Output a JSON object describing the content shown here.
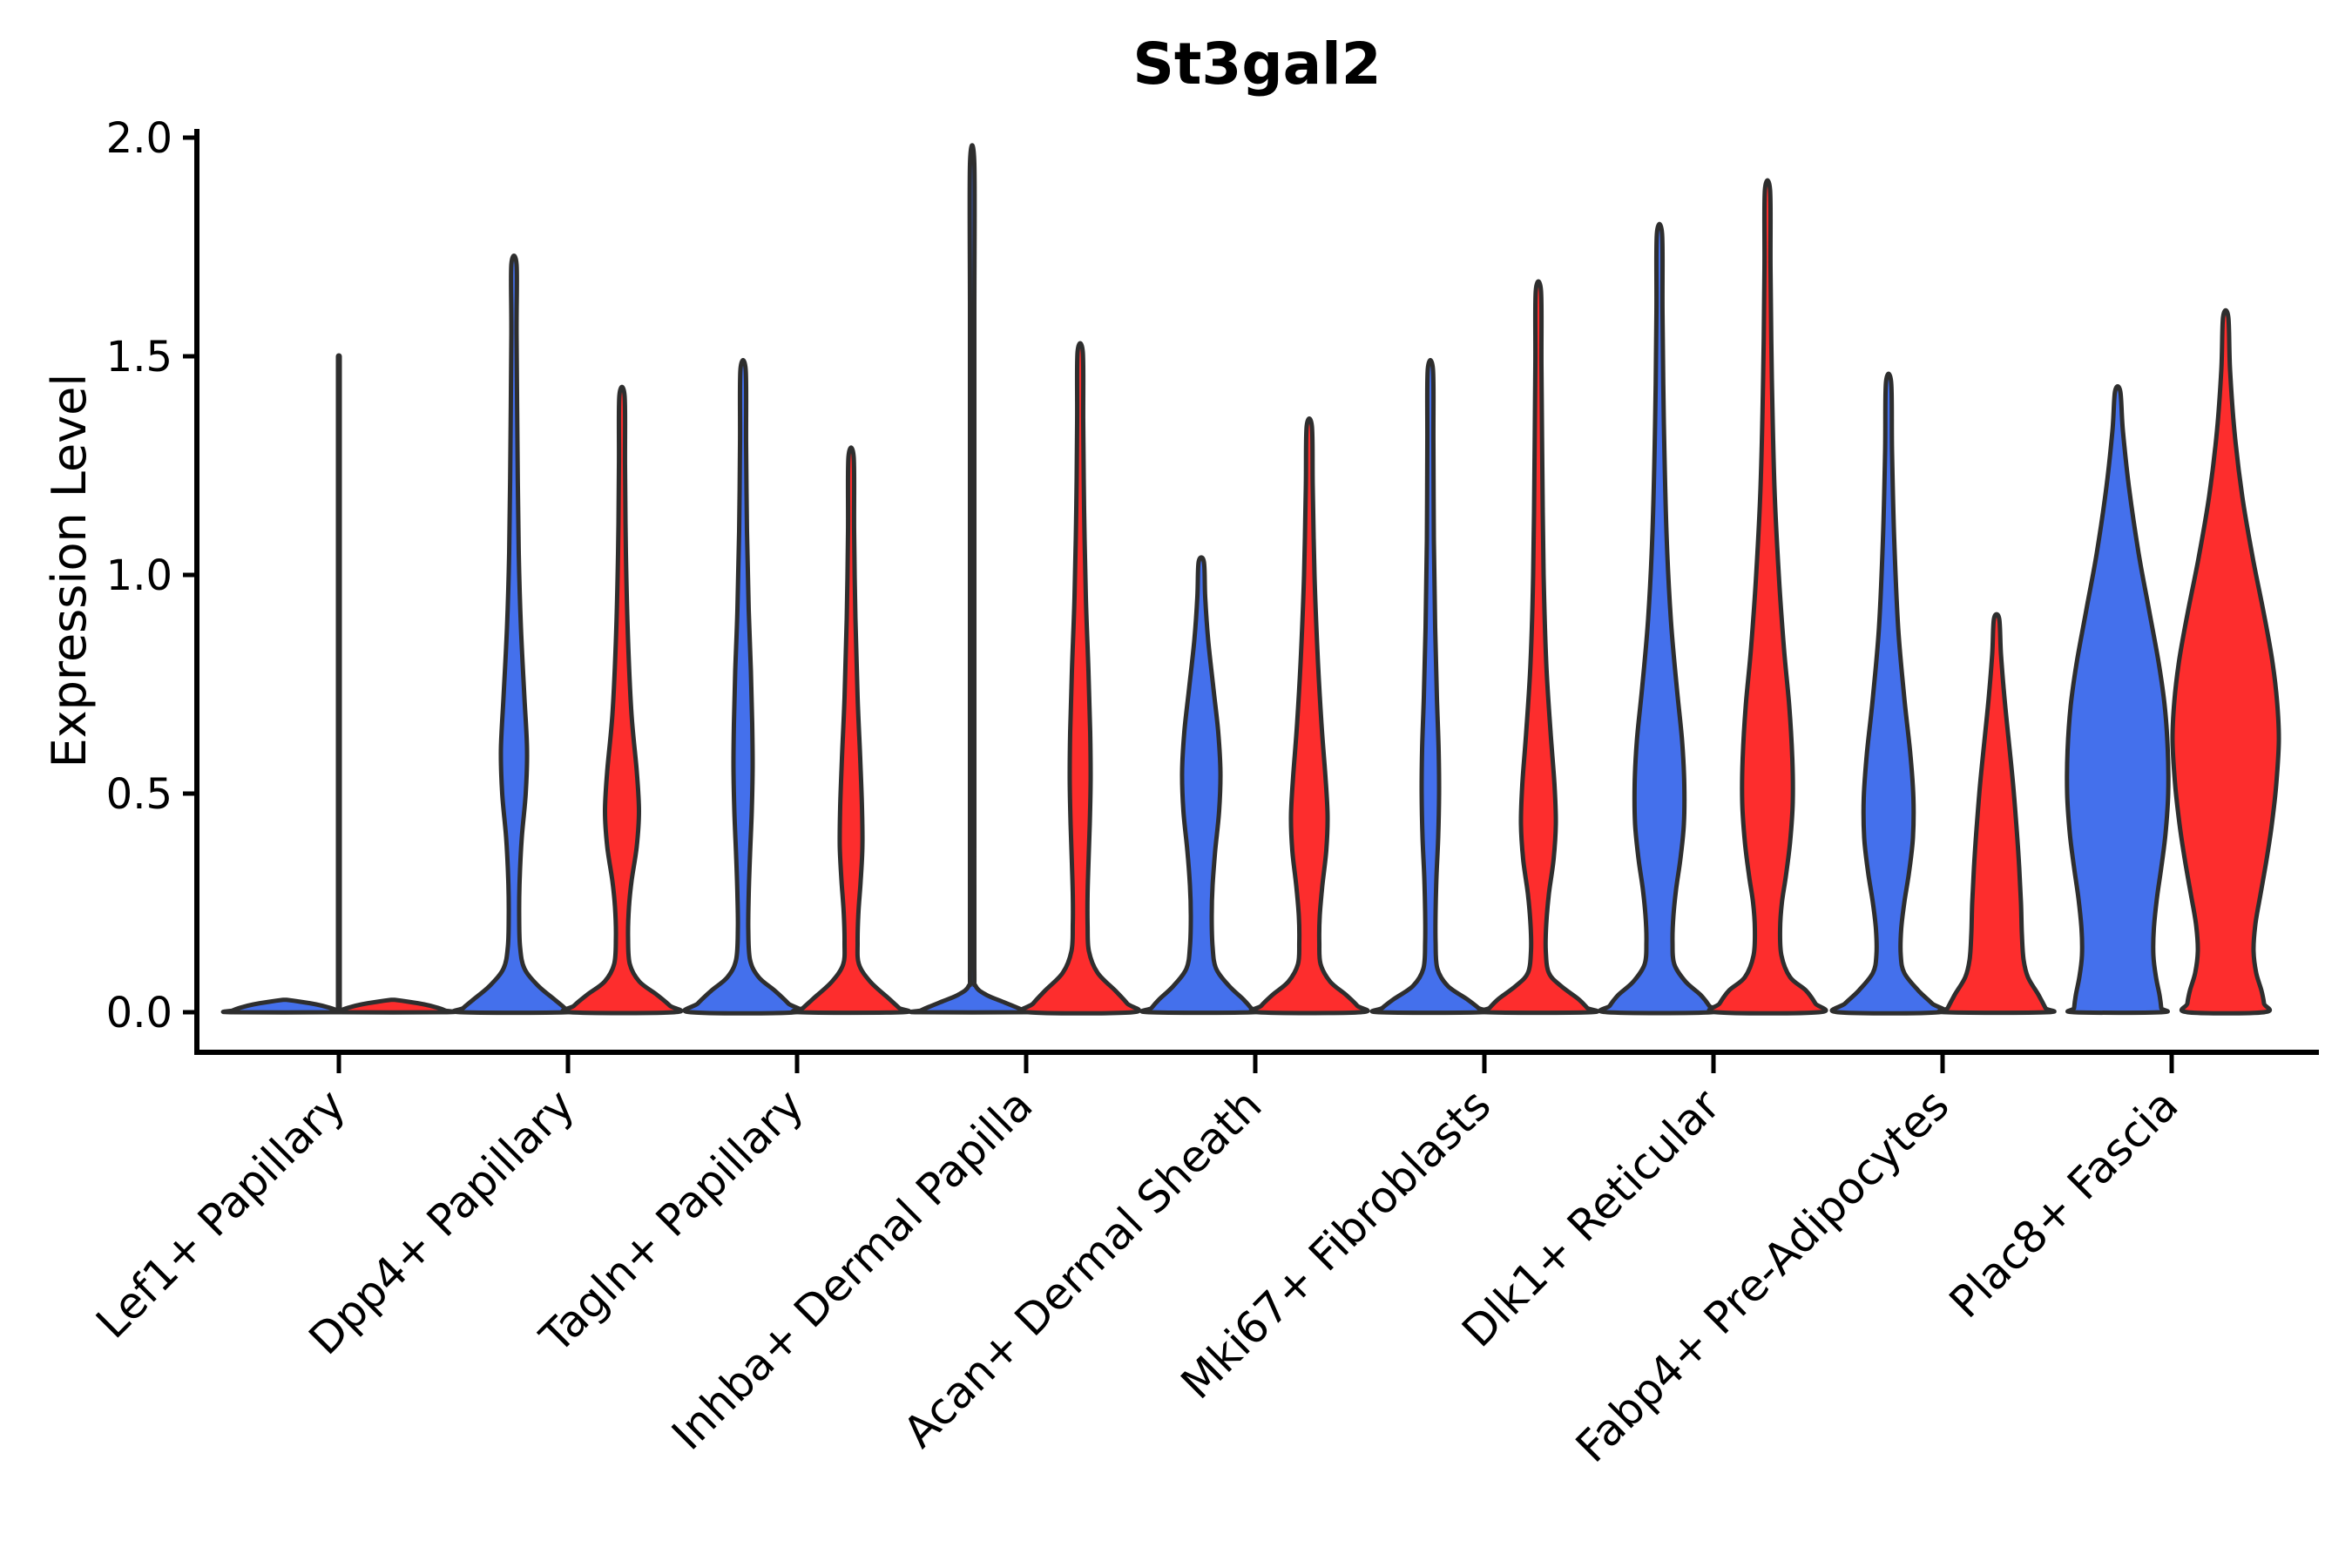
{
  "title": "St3gal2",
  "y_axis": {
    "label": "Expression Level",
    "ticks": [
      "0.0",
      "0.5",
      "1.0",
      "1.5",
      "2.0"
    ]
  },
  "colors": {
    "blue": "#4470ec",
    "red": "#fd2d2d",
    "outline": "#2e2e2e",
    "axis": "#000000",
    "text": "#000000"
  },
  "chart_data": {
    "type": "violin",
    "title": "St3gal2",
    "xlabel": "",
    "ylabel": "Expression Level",
    "ylim": [
      0,
      2
    ],
    "yticks": [
      0.0,
      0.5,
      1.0,
      1.5,
      2.0
    ],
    "grid": false,
    "legend_position": "none",
    "categories": [
      "Lef1+ Papillary",
      "Dpp4+ Papillary",
      "Tagln+ Papillary",
      "Inhba+ Dermal Papilla",
      "Acan+ Dermal Sheath",
      "Mki67+ Fibroblasts",
      "Dlk1+ Reticular",
      "Fabp4+ Pre-Adipocytes",
      "Plac8+ Fascia"
    ],
    "series": [
      {
        "name": "blue",
        "color": "#4470ec",
        "max_expression": [
          1.5,
          1.71,
          1.47,
          1.94,
          1.03,
          1.47,
          1.78,
          1.44,
          1.42
        ]
      },
      {
        "name": "red",
        "color": "#fd2d2d",
        "max_expression": [
          0.03,
          1.41,
          1.27,
          1.51,
          1.34,
          1.65,
          1.88,
          0.9,
          1.59
        ]
      }
    ],
    "zero_stick": {
      "category_index": 0,
      "value": 1.5,
      "position": "group-center"
    },
    "violins": [
      {
        "category_index": 0,
        "color": "blue",
        "max": 0.03,
        "profile": [
          [
            0.028,
            3
          ],
          [
            0.024,
            18
          ],
          [
            0.018,
            36
          ],
          [
            0.01,
            52
          ],
          [
            0.004,
            60
          ],
          [
            0,
            62
          ]
        ]
      },
      {
        "category_index": 0,
        "color": "red",
        "max": 0.03,
        "profile": [
          [
            0.028,
            3
          ],
          [
            0.024,
            18
          ],
          [
            0.018,
            36
          ],
          [
            0.01,
            52
          ],
          [
            0.004,
            60
          ],
          [
            0,
            62
          ]
        ]
      },
      {
        "category_index": 1,
        "color": "blue",
        "max": 1.71,
        "profile": [
          [
            1.71,
            3
          ],
          [
            1.55,
            3
          ],
          [
            1.3,
            4
          ],
          [
            1.05,
            5.5
          ],
          [
            0.88,
            8
          ],
          [
            0.72,
            12
          ],
          [
            0.6,
            15
          ],
          [
            0.5,
            13.5
          ],
          [
            0.4,
            9
          ],
          [
            0.3,
            6.5
          ],
          [
            0.22,
            6
          ],
          [
            0.15,
            7
          ],
          [
            0.1,
            12
          ],
          [
            0.06,
            28
          ],
          [
            0.03,
            46
          ],
          [
            0.01,
            58
          ],
          [
            0,
            61
          ]
        ]
      },
      {
        "category_index": 1,
        "color": "red",
        "max": 1.41,
        "profile": [
          [
            1.41,
            3
          ],
          [
            1.25,
            3.5
          ],
          [
            1.05,
            4.5
          ],
          [
            0.85,
            7
          ],
          [
            0.68,
            11
          ],
          [
            0.55,
            17
          ],
          [
            0.46,
            19.5
          ],
          [
            0.38,
            17
          ],
          [
            0.3,
            11
          ],
          [
            0.24,
            8
          ],
          [
            0.17,
            7
          ],
          [
            0.11,
            9
          ],
          [
            0.07,
            20
          ],
          [
            0.04,
            40
          ],
          [
            0.015,
            55
          ],
          [
            0,
            60
          ]
        ]
      },
      {
        "category_index": 2,
        "color": "blue",
        "max": 1.47,
        "profile": [
          [
            1.47,
            3
          ],
          [
            1.3,
            3.5
          ],
          [
            1.1,
            4.5
          ],
          [
            0.92,
            6.5
          ],
          [
            0.78,
            9
          ],
          [
            0.66,
            10.5
          ],
          [
            0.56,
            11
          ],
          [
            0.46,
            10
          ],
          [
            0.36,
            8
          ],
          [
            0.27,
            6.5
          ],
          [
            0.19,
            6
          ],
          [
            0.12,
            8
          ],
          [
            0.08,
            18
          ],
          [
            0.05,
            36
          ],
          [
            0.02,
            52
          ],
          [
            0,
            60
          ]
        ]
      },
      {
        "category_index": 2,
        "color": "red",
        "max": 1.27,
        "profile": [
          [
            1.27,
            3
          ],
          [
            1.1,
            3.5
          ],
          [
            0.9,
            5
          ],
          [
            0.72,
            7.5
          ],
          [
            0.58,
            10.5
          ],
          [
            0.47,
            12.5
          ],
          [
            0.38,
            13
          ],
          [
            0.3,
            11
          ],
          [
            0.23,
            8.5
          ],
          [
            0.16,
            7.5
          ],
          [
            0.11,
            9
          ],
          [
            0.07,
            22
          ],
          [
            0.03,
            44
          ],
          [
            0.01,
            55
          ],
          [
            0,
            59
          ]
        ]
      },
      {
        "category_index": 3,
        "color": "blue",
        "max": 1.94,
        "profile": [
          [
            1.94,
            2.5
          ],
          [
            1.6,
            2.5
          ],
          [
            1.2,
            2.5
          ],
          [
            0.8,
            2.5
          ],
          [
            0.4,
            2.5
          ],
          [
            0.1,
            2.5
          ],
          [
            0.06,
            4
          ],
          [
            0.04,
            16
          ],
          [
            0.025,
            34
          ],
          [
            0.012,
            50
          ],
          [
            0.004,
            59
          ],
          [
            0,
            62
          ]
        ]
      },
      {
        "category_index": 3,
        "color": "red",
        "max": 1.51,
        "profile": [
          [
            1.51,
            3
          ],
          [
            1.35,
            3.5
          ],
          [
            1.15,
            4.5
          ],
          [
            0.95,
            6.5
          ],
          [
            0.78,
            9.5
          ],
          [
            0.64,
            11.5
          ],
          [
            0.53,
            12
          ],
          [
            0.43,
            11
          ],
          [
            0.34,
            9.5
          ],
          [
            0.27,
            8.5
          ],
          [
            0.2,
            8.5
          ],
          [
            0.14,
            10
          ],
          [
            0.09,
            20
          ],
          [
            0.05,
            40
          ],
          [
            0.02,
            54
          ],
          [
            0,
            60
          ]
        ]
      },
      {
        "category_index": 4,
        "color": "blue",
        "max": 1.03,
        "profile": [
          [
            1.03,
            3
          ],
          [
            0.95,
            4.5
          ],
          [
            0.85,
            8
          ],
          [
            0.74,
            14
          ],
          [
            0.64,
            19.5
          ],
          [
            0.55,
            22
          ],
          [
            0.46,
            20.5
          ],
          [
            0.37,
            16
          ],
          [
            0.29,
            13
          ],
          [
            0.22,
            12
          ],
          [
            0.15,
            13
          ],
          [
            0.1,
            17
          ],
          [
            0.06,
            32
          ],
          [
            0.03,
            48
          ],
          [
            0.01,
            57
          ],
          [
            0,
            60
          ]
        ]
      },
      {
        "category_index": 4,
        "color": "red",
        "max": 1.34,
        "profile": [
          [
            1.34,
            3
          ],
          [
            1.2,
            4
          ],
          [
            1.0,
            6
          ],
          [
            0.82,
            9.5
          ],
          [
            0.66,
            14
          ],
          [
            0.54,
            18.5
          ],
          [
            0.45,
            21
          ],
          [
            0.37,
            19.5
          ],
          [
            0.29,
            15
          ],
          [
            0.22,
            12
          ],
          [
            0.16,
            11.5
          ],
          [
            0.11,
            13
          ],
          [
            0.07,
            24
          ],
          [
            0.04,
            42
          ],
          [
            0.015,
            55
          ],
          [
            0,
            59
          ]
        ]
      },
      {
        "category_index": 5,
        "color": "blue",
        "max": 1.47,
        "profile": [
          [
            1.47,
            3
          ],
          [
            1.3,
            3.5
          ],
          [
            1.08,
            4
          ],
          [
            0.88,
            5.5
          ],
          [
            0.72,
            7.5
          ],
          [
            0.6,
            9.5
          ],
          [
            0.5,
            10
          ],
          [
            0.4,
            9
          ],
          [
            0.31,
            7
          ],
          [
            0.23,
            6
          ],
          [
            0.16,
            6
          ],
          [
            0.1,
            8
          ],
          [
            0.06,
            20
          ],
          [
            0.03,
            42
          ],
          [
            0.01,
            55
          ],
          [
            0,
            59
          ]
        ]
      },
      {
        "category_index": 5,
        "color": "red",
        "max": 1.65,
        "profile": [
          [
            1.65,
            3
          ],
          [
            1.48,
            3.5
          ],
          [
            1.25,
            4.5
          ],
          [
            1.0,
            6
          ],
          [
            0.8,
            9
          ],
          [
            0.64,
            14
          ],
          [
            0.52,
            18.5
          ],
          [
            0.43,
            20
          ],
          [
            0.35,
            17.5
          ],
          [
            0.27,
            12
          ],
          [
            0.2,
            9
          ],
          [
            0.14,
            8.5
          ],
          [
            0.09,
            12
          ],
          [
            0.06,
            26
          ],
          [
            0.03,
            46
          ],
          [
            0.01,
            56
          ],
          [
            0,
            60
          ]
        ]
      },
      {
        "category_index": 6,
        "color": "blue",
        "max": 1.78,
        "profile": [
          [
            1.78,
            3
          ],
          [
            1.6,
            3.5
          ],
          [
            1.35,
            5
          ],
          [
            1.1,
            8
          ],
          [
            0.9,
            13
          ],
          [
            0.74,
            20
          ],
          [
            0.62,
            26
          ],
          [
            0.52,
            28.5
          ],
          [
            0.43,
            28
          ],
          [
            0.35,
            24
          ],
          [
            0.28,
            19
          ],
          [
            0.22,
            16
          ],
          [
            0.16,
            15
          ],
          [
            0.11,
            17
          ],
          [
            0.07,
            30
          ],
          [
            0.04,
            47
          ],
          [
            0.015,
            57
          ],
          [
            0,
            60
          ]
        ]
      },
      {
        "category_index": 6,
        "color": "red",
        "max": 1.88,
        "profile": [
          [
            1.88,
            3
          ],
          [
            1.7,
            3.5
          ],
          [
            1.45,
            5
          ],
          [
            1.2,
            8
          ],
          [
            1.0,
            13
          ],
          [
            0.83,
            19
          ],
          [
            0.7,
            25
          ],
          [
            0.58,
            28.5
          ],
          [
            0.48,
            29
          ],
          [
            0.39,
            26
          ],
          [
            0.31,
            21
          ],
          [
            0.25,
            16.5
          ],
          [
            0.19,
            14.5
          ],
          [
            0.13,
            16
          ],
          [
            0.08,
            26
          ],
          [
            0.05,
            44
          ],
          [
            0.02,
            55
          ],
          [
            0,
            59
          ]
        ]
      },
      {
        "category_index": 7,
        "color": "blue",
        "max": 1.44,
        "profile": [
          [
            1.44,
            3
          ],
          [
            1.28,
            4
          ],
          [
            1.08,
            6.5
          ],
          [
            0.88,
            11
          ],
          [
            0.72,
            18
          ],
          [
            0.59,
            25
          ],
          [
            0.49,
            28.5
          ],
          [
            0.4,
            28
          ],
          [
            0.32,
            23.5
          ],
          [
            0.25,
            18
          ],
          [
            0.19,
            14.5
          ],
          [
            0.13,
            14
          ],
          [
            0.09,
            18
          ],
          [
            0.05,
            34
          ],
          [
            0.02,
            50
          ],
          [
            0,
            58
          ]
        ]
      },
      {
        "category_index": 7,
        "color": "red",
        "max": 0.9,
        "profile": [
          [
            0.9,
            3
          ],
          [
            0.82,
            5
          ],
          [
            0.72,
            9
          ],
          [
            0.62,
            14
          ],
          [
            0.52,
            19
          ],
          [
            0.42,
            23
          ],
          [
            0.33,
            26
          ],
          [
            0.25,
            28
          ],
          [
            0.18,
            29
          ],
          [
            0.12,
            31
          ],
          [
            0.08,
            36
          ],
          [
            0.04,
            48
          ],
          [
            0.01,
            56
          ],
          [
            0,
            58
          ]
        ]
      },
      {
        "category_index": 8,
        "color": "blue",
        "max": 1.42,
        "profile": [
          [
            1.42,
            3
          ],
          [
            1.33,
            6
          ],
          [
            1.2,
            13
          ],
          [
            1.05,
            24
          ],
          [
            0.92,
            36
          ],
          [
            0.8,
            47
          ],
          [
            0.7,
            54
          ],
          [
            0.6,
            57.5
          ],
          [
            0.5,
            58
          ],
          [
            0.41,
            55
          ],
          [
            0.33,
            50
          ],
          [
            0.26,
            45
          ],
          [
            0.19,
            41.5
          ],
          [
            0.13,
            41
          ],
          [
            0.08,
            44
          ],
          [
            0.04,
            48
          ],
          [
            0.01,
            50
          ],
          [
            0,
            50
          ]
        ]
      },
      {
        "category_index": 8,
        "color": "red",
        "max": 1.59,
        "profile": [
          [
            1.59,
            3
          ],
          [
            1.47,
            5
          ],
          [
            1.33,
            10
          ],
          [
            1.18,
            19
          ],
          [
            1.04,
            31
          ],
          [
            0.92,
            43
          ],
          [
            0.81,
            53
          ],
          [
            0.71,
            59
          ],
          [
            0.62,
            61
          ],
          [
            0.52,
            58
          ],
          [
            0.43,
            53
          ],
          [
            0.35,
            47
          ],
          [
            0.27,
            40
          ],
          [
            0.2,
            34
          ],
          [
            0.14,
            32
          ],
          [
            0.09,
            35
          ],
          [
            0.05,
            41
          ],
          [
            0.02,
            44
          ],
          [
            0,
            44
          ]
        ]
      }
    ]
  }
}
